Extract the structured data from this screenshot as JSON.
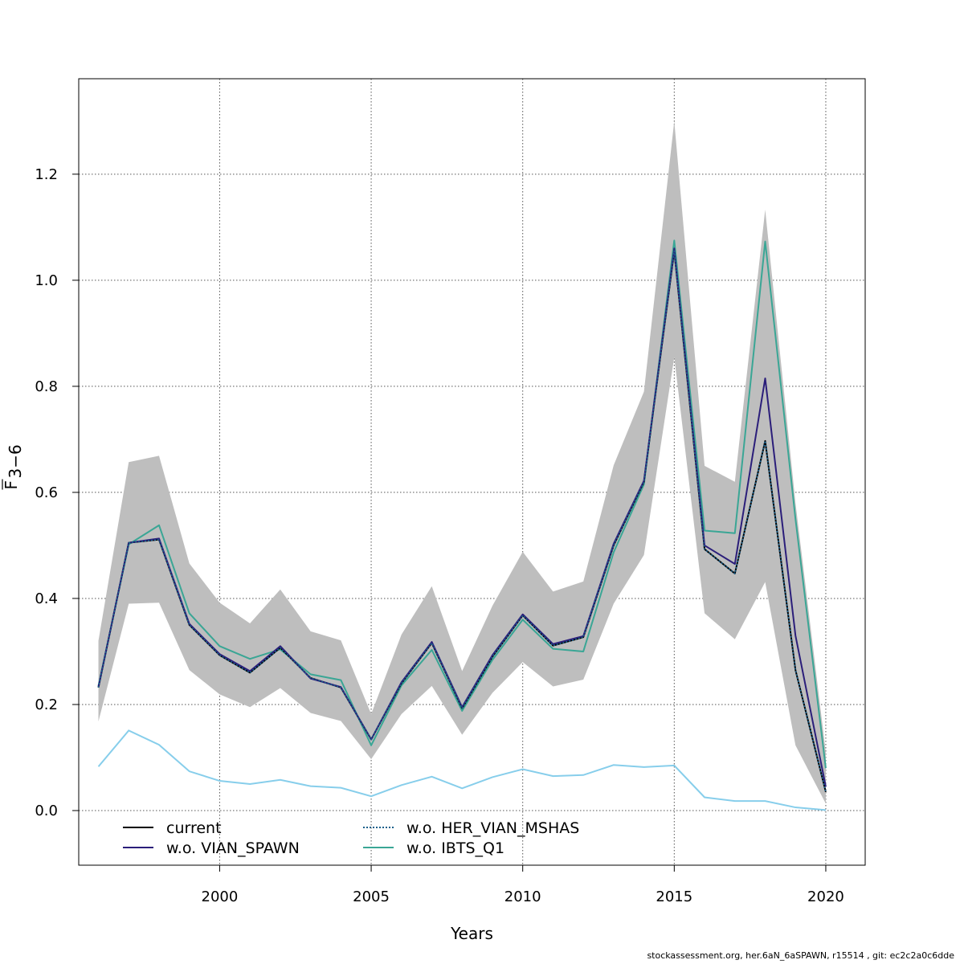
{
  "chart_data": {
    "type": "line",
    "title": "",
    "xlabel": "Years",
    "ylabel_main": "F",
    "ylabel_sub": "3−6",
    "xlim": [
      1995.35,
      2021.3
    ],
    "ylim": [
      -0.103,
      1.38
    ],
    "x_ticks": [
      2000,
      2005,
      2010,
      2015,
      2020
    ],
    "y_ticks": [
      0.0,
      0.2,
      0.4,
      0.6,
      0.8,
      1.0,
      1.2
    ],
    "y_tick_labels": [
      "0.0",
      "0.2",
      "0.4",
      "0.6",
      "0.8",
      "1.0",
      "1.2"
    ],
    "grid": true,
    "legend_position": "bottom-left",
    "years": [
      1996,
      1997,
      1998,
      1999,
      2000,
      2001,
      2002,
      2003,
      2004,
      2005,
      2006,
      2007,
      2008,
      2009,
      2010,
      2011,
      2012,
      2013,
      2014,
      2015,
      2016,
      2017,
      2018,
      2019,
      2020
    ],
    "band": {
      "color": "#bebebe",
      "upper": [
        0.32,
        0.657,
        0.669,
        0.466,
        0.392,
        0.353,
        0.417,
        0.338,
        0.321,
        0.182,
        0.332,
        0.423,
        0.263,
        0.386,
        0.488,
        0.413,
        0.432,
        0.651,
        0.79,
        1.3,
        0.65,
        0.62,
        1.133,
        0.58,
        0.11
      ],
      "lower": [
        0.168,
        0.39,
        0.392,
        0.265,
        0.219,
        0.195,
        0.231,
        0.184,
        0.169,
        0.097,
        0.182,
        0.235,
        0.143,
        0.222,
        0.28,
        0.234,
        0.247,
        0.39,
        0.482,
        0.855,
        0.372,
        0.323,
        0.431,
        0.123,
        0.013
      ]
    },
    "sd_line": {
      "color": "#87ceeb",
      "values": [
        0.083,
        0.151,
        0.124,
        0.074,
        0.056,
        0.05,
        0.058,
        0.046,
        0.043,
        0.027,
        0.048,
        0.064,
        0.042,
        0.063,
        0.078,
        0.065,
        0.067,
        0.086,
        0.082,
        0.085,
        0.025,
        0.018,
        0.018,
        0.006,
        0.001
      ]
    },
    "series": [
      {
        "name": "current",
        "color": "#000000",
        "dashed": false,
        "values": [
          0.232,
          0.505,
          0.511,
          0.35,
          0.293,
          0.26,
          0.307,
          0.25,
          0.232,
          0.134,
          0.24,
          0.316,
          0.193,
          0.29,
          0.368,
          0.311,
          0.327,
          0.5,
          0.62,
          1.055,
          0.493,
          0.447,
          0.697,
          0.265,
          0.035
        ]
      },
      {
        "name": "w.o. VIAN_SPAWN",
        "color": "#2b1e7a",
        "dashed": false,
        "values": [
          0.233,
          0.505,
          0.513,
          0.352,
          0.295,
          0.263,
          0.31,
          0.249,
          0.233,
          0.134,
          0.242,
          0.318,
          0.195,
          0.293,
          0.37,
          0.314,
          0.329,
          0.503,
          0.622,
          1.06,
          0.5,
          0.465,
          0.815,
          0.33,
          0.045
        ]
      },
      {
        "name": "w.o. HER_VIAN_MSHAS",
        "color": "#1a5f8a",
        "dashed": true,
        "values": [
          0.232,
          0.505,
          0.511,
          0.35,
          0.293,
          0.26,
          0.307,
          0.25,
          0.232,
          0.134,
          0.24,
          0.316,
          0.193,
          0.29,
          0.368,
          0.311,
          0.327,
          0.5,
          0.62,
          1.055,
          0.493,
          0.447,
          0.697,
          0.265,
          0.035
        ]
      },
      {
        "name": "w.o. IBTS_Q1",
        "color": "#3aa695",
        "dashed": false,
        "values": [
          0.235,
          0.502,
          0.538,
          0.372,
          0.31,
          0.286,
          0.304,
          0.257,
          0.246,
          0.123,
          0.236,
          0.303,
          0.188,
          0.284,
          0.36,
          0.305,
          0.3,
          0.487,
          0.615,
          1.075,
          0.528,
          0.523,
          1.073,
          0.55,
          0.08
        ]
      }
    ],
    "legend_entries": [
      {
        "label": "current",
        "color": "#000000",
        "dashed": false
      },
      {
        "label": "w.o. VIAN_SPAWN",
        "color": "#2b1e7a",
        "dashed": false
      },
      {
        "label": "w.o. HER_VIAN_MSHAS",
        "color": "#1a5f8a",
        "dashed": true
      },
      {
        "label": "w.o. IBTS_Q1",
        "color": "#3aa695",
        "dashed": false
      }
    ]
  },
  "footer": "stockassessment.org, her.6aN_6aSPAWN, r15514 , git: ec2c2a0c6dde"
}
